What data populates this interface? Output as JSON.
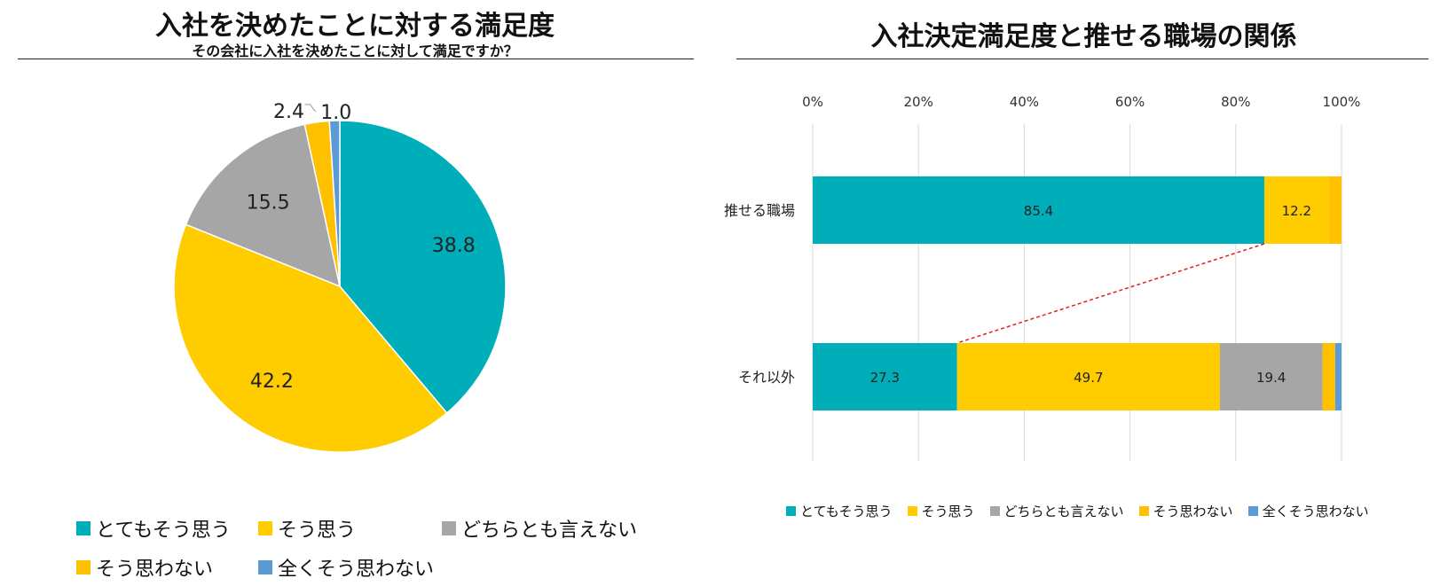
{
  "colors": {
    "teal": "#00AEB9",
    "yellow": "#FFCC00",
    "gray": "#A6A6A6",
    "orange": "#FFC000",
    "blue": "#5B9BD5"
  },
  "chart_data": [
    {
      "type": "pie",
      "title": "入社を決めたことに対する満足度",
      "subtitle": "その会社に入社を決めたことに対して満足ですか？",
      "categories": [
        "とてもそう思う",
        "そう思う",
        "どちらとも言えない",
        "そう思わない",
        "全くそう思わない"
      ],
      "values": [
        38.8,
        42.2,
        15.5,
        2.4,
        1.0
      ],
      "labels": [
        "38.8",
        "42.2",
        "15.5",
        "2.4",
        "1.0"
      ],
      "colors": [
        "#00AEB9",
        "#FFCC00",
        "#A6A6A6",
        "#FFC000",
        "#5B9BD5"
      ],
      "legend": [
        "とてもそう思う",
        "そう思う",
        "どちらとも言えない",
        "そう思わない",
        "全くそう思わない"
      ]
    },
    {
      "type": "bar",
      "orientation": "horizontal",
      "stacked": "percent",
      "title": "入社決定満足度と推せる職場の関係",
      "categories": [
        "推せる職場",
        "それ以外"
      ],
      "xlim": [
        0,
        100
      ],
      "xticks": [
        "0%",
        "20%",
        "40%",
        "60%",
        "80%",
        "100%"
      ],
      "series": [
        {
          "name": "とてもそう思う",
          "color": "#00AEB9",
          "values": [
            85.4,
            27.3
          ],
          "labels": [
            "85.4",
            "27.3"
          ]
        },
        {
          "name": "そう思う",
          "color": "#FFCC00",
          "values": [
            12.2,
            49.7
          ],
          "labels": [
            "12.2",
            "49.7"
          ]
        },
        {
          "name": "どちらとも言えない",
          "color": "#A6A6A6",
          "values": [
            0,
            19.4
          ],
          "labels": [
            "",
            "19.4"
          ]
        },
        {
          "name": "そう思わない",
          "color": "#FFC000",
          "values": [
            2.4,
            2.4
          ],
          "labels": [
            "",
            ""
          ]
        },
        {
          "name": "全くそう思わない",
          "color": "#5B9BD5",
          "values": [
            0,
            1.2
          ],
          "labels": [
            "",
            ""
          ]
        }
      ],
      "annotation": "dashed red connector between end of 'とてもそう思う' segments",
      "legend": [
        "とてもそう思う",
        "そう思う",
        "どちらとも言えない",
        "そう思わない",
        "全くそう思わない"
      ]
    }
  ]
}
